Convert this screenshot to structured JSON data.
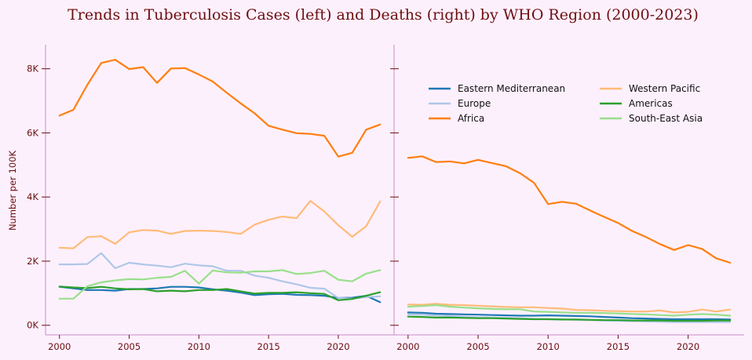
{
  "title": "Trends in Tuberculosis Cases (left) and Deaths (right) by WHO Region (2000-2023)",
  "chart_data": [
    {
      "type": "line",
      "panel": "left",
      "ylabel": "Number per 100K",
      "xlim": [
        1999,
        2024
      ],
      "ylim": [
        -300,
        8750
      ],
      "xticks": [
        2000,
        2005,
        2010,
        2015,
        2020
      ],
      "yticks": [
        0,
        2000,
        4000,
        6000,
        8000
      ],
      "ytick_labels": [
        "0K",
        "2K",
        "4K",
        "6K",
        "8K"
      ],
      "x": [
        2000,
        2001,
        2002,
        2003,
        2004,
        2005,
        2006,
        2007,
        2008,
        2009,
        2010,
        2011,
        2012,
        2013,
        2014,
        2015,
        2016,
        2017,
        2018,
        2019,
        2020,
        2021,
        2022,
        2023
      ],
      "series": [
        {
          "name": "Eastern Mediterranean",
          "color": "#1f77b4",
          "values": [
            1200,
            1150,
            1100,
            1100,
            1080,
            1130,
            1130,
            1150,
            1200,
            1200,
            1180,
            1120,
            1080,
            1020,
            940,
            970,
            980,
            950,
            940,
            920,
            850,
            860,
            920,
            720
          ]
        },
        {
          "name": "Europe",
          "color": "#aec7e8",
          "values": [
            1900,
            1900,
            1910,
            2250,
            1780,
            1950,
            1900,
            1860,
            1810,
            1920,
            1870,
            1840,
            1700,
            1700,
            1550,
            1480,
            1370,
            1280,
            1170,
            1140,
            850,
            830,
            880,
            900
          ]
        },
        {
          "name": "Africa",
          "color": "#ff7f0e",
          "values": [
            6540,
            6720,
            7500,
            8180,
            8280,
            7990,
            8050,
            7560,
            8010,
            8020,
            7820,
            7600,
            7250,
            6920,
            6610,
            6220,
            6100,
            5990,
            5970,
            5910,
            5260,
            5380,
            6100,
            6260
          ]
        },
        {
          "name": "Western Pacific",
          "color": "#ffbb78",
          "values": [
            2420,
            2400,
            2750,
            2780,
            2540,
            2900,
            2970,
            2950,
            2850,
            2940,
            2950,
            2940,
            2910,
            2850,
            3140,
            3290,
            3390,
            3340,
            3880,
            3550,
            3120,
            2760,
            3090,
            3860
          ]
        },
        {
          "name": "Americas",
          "color": "#2ca02c",
          "values": [
            1210,
            1180,
            1160,
            1200,
            1150,
            1120,
            1130,
            1060,
            1080,
            1060,
            1100,
            1100,
            1130,
            1060,
            990,
            1010,
            1010,
            1030,
            1000,
            980,
            780,
            820,
            920,
            1030
          ]
        },
        {
          "name": "South-East Asia",
          "color": "#98df8a",
          "values": [
            830,
            830,
            1220,
            1340,
            1400,
            1440,
            1430,
            1480,
            1510,
            1700,
            1300,
            1710,
            1650,
            1640,
            1680,
            1680,
            1720,
            1600,
            1630,
            1700,
            1420,
            1370,
            1610,
            1720
          ]
        }
      ]
    },
    {
      "type": "line",
      "panel": "right",
      "xlim": [
        1999,
        2024
      ],
      "ylim": [
        -300,
        8750
      ],
      "xticks": [
        2000,
        2005,
        2010,
        2015,
        2020
      ],
      "legend_position": "upper",
      "x": [
        2000,
        2001,
        2002,
        2003,
        2004,
        2005,
        2006,
        2007,
        2008,
        2009,
        2010,
        2011,
        2012,
        2013,
        2014,
        2015,
        2016,
        2017,
        2018,
        2019,
        2020,
        2021,
        2022,
        2023
      ],
      "series": [
        {
          "name": "Eastern Mediterranean",
          "color": "#1f77b4",
          "values": [
            400,
            390,
            360,
            350,
            340,
            330,
            320,
            310,
            300,
            300,
            310,
            300,
            290,
            280,
            260,
            240,
            220,
            210,
            200,
            190,
            190,
            190,
            190,
            180
          ]
        },
        {
          "name": "Europe",
          "color": "#aec7e8",
          "values": [
            340,
            330,
            310,
            290,
            270,
            250,
            240,
            230,
            220,
            200,
            190,
            180,
            170,
            160,
            150,
            140,
            130,
            120,
            110,
            100,
            100,
            100,
            100,
            100
          ]
        },
        {
          "name": "Africa",
          "color": "#ff7f0e",
          "values": [
            5220,
            5270,
            5090,
            5110,
            5050,
            5160,
            5060,
            4960,
            4740,
            4440,
            3780,
            3850,
            3790,
            3580,
            3380,
            3190,
            2940,
            2750,
            2530,
            2350,
            2500,
            2380,
            2090,
            1950
          ]
        },
        {
          "name": "Western Pacific",
          "color": "#ffbb78",
          "values": [
            650,
            640,
            670,
            640,
            630,
            610,
            590,
            570,
            560,
            560,
            540,
            520,
            480,
            470,
            450,
            440,
            430,
            430,
            460,
            400,
            420,
            490,
            430,
            490
          ]
        },
        {
          "name": "Americas",
          "color": "#2ca02c",
          "values": [
            270,
            260,
            240,
            240,
            230,
            220,
            220,
            210,
            200,
            190,
            190,
            180,
            180,
            170,
            160,
            160,
            150,
            150,
            150,
            140,
            140,
            140,
            150,
            150
          ]
        },
        {
          "name": "South-East Asia",
          "color": "#98df8a",
          "values": [
            580,
            600,
            630,
            580,
            550,
            530,
            510,
            500,
            500,
            430,
            420,
            400,
            390,
            390,
            380,
            370,
            350,
            340,
            320,
            300,
            330,
            350,
            330,
            300
          ]
        }
      ]
    }
  ]
}
